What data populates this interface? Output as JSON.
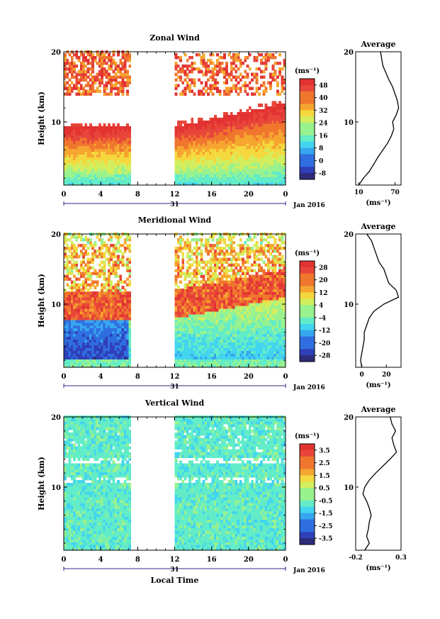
{
  "figure": {
    "date_label": "Jan 2016",
    "day_label": "31",
    "xlabel": "Local Time",
    "ylabel": "Height (km)",
    "avg_title": "Average",
    "unit_label": "(ms⁻¹)",
    "x_ticks": [
      "0",
      "4",
      "8",
      "12",
      "16",
      "20",
      "0"
    ],
    "y_ticks": [
      "10",
      "20"
    ],
    "data_gap_hours": [
      7.3,
      11.8
    ]
  },
  "chart_data": [
    {
      "type": "heatmap",
      "title": "Zonal Wind",
      "xlim": [
        0,
        24
      ],
      "ylim": [
        1,
        20
      ],
      "colorbar": {
        "labels": [
          "48",
          "40",
          "32",
          "24",
          "16",
          "8",
          "0",
          "-8"
        ],
        "range": [
          -12,
          52
        ]
      },
      "profile": {
        "title": "Average",
        "type": "line",
        "x_ticks": [
          "10",
          "70"
        ],
        "xlim": [
          5,
          80
        ],
        "xlabel": "(ms⁻¹)",
        "height_km": [
          1,
          2,
          3,
          4,
          5,
          6,
          7,
          8,
          9,
          10,
          11,
          12,
          13,
          14,
          15,
          16,
          17,
          18,
          19,
          20
        ],
        "values": [
          10,
          18,
          28,
          35,
          42,
          50,
          58,
          64,
          68,
          66,
          72,
          76,
          74,
          70,
          66,
          60,
          55,
          50,
          48,
          46
        ]
      }
    },
    {
      "type": "heatmap",
      "title": "Meridional Wind",
      "xlim": [
        0,
        24
      ],
      "ylim": [
        1,
        20
      ],
      "colorbar": {
        "labels": [
          "28",
          "20",
          "12",
          "4",
          "-4",
          "-12",
          "-20",
          "-28"
        ],
        "range": [
          -32,
          32
        ]
      },
      "profile": {
        "title": "Average",
        "type": "line",
        "x_ticks": [
          "0",
          "20"
        ],
        "xlim": [
          -5,
          32
        ],
        "xlabel": "(ms⁻¹)",
        "height_km": [
          1,
          2,
          3,
          4,
          5,
          6,
          7,
          8,
          9,
          10,
          11,
          12,
          13,
          14,
          15,
          16,
          17,
          18,
          19,
          20
        ],
        "values": [
          0,
          -1,
          0,
          1,
          2,
          2,
          4,
          6,
          10,
          18,
          30,
          28,
          22,
          20,
          18,
          14,
          12,
          10,
          8,
          4
        ]
      }
    },
    {
      "type": "heatmap",
      "title": "Vertical Wind",
      "xlim": [
        0,
        24
      ],
      "ylim": [
        1,
        20
      ],
      "colorbar": {
        "labels": [
          "3.5",
          "2.5",
          "1.5",
          "0.5",
          "-0.5",
          "-1.5",
          "-2.5",
          "-3.5"
        ],
        "range": [
          -4,
          4
        ]
      },
      "profile": {
        "title": "Average",
        "type": "line",
        "x_ticks": [
          "-0.2",
          "0.3"
        ],
        "xlim": [
          -0.2,
          0.3
        ],
        "xlabel": "(ms⁻¹)",
        "height_km": [
          1,
          2,
          3,
          4,
          5,
          6,
          7,
          8,
          9,
          10,
          11,
          12,
          13,
          14,
          15,
          16,
          17,
          18,
          19,
          20
        ],
        "values": [
          -0.1,
          -0.05,
          -0.08,
          -0.06,
          -0.05,
          -0.03,
          -0.05,
          -0.08,
          -0.12,
          -0.1,
          -0.05,
          0.02,
          0.1,
          0.18,
          0.25,
          0.22,
          0.2,
          0.24,
          0.2,
          0.18
        ]
      }
    }
  ]
}
